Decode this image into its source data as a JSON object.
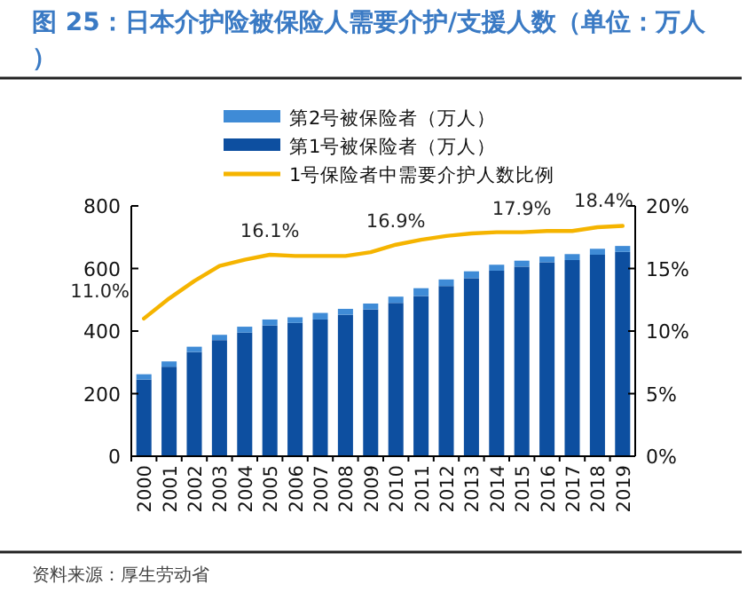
{
  "chart_data": {
    "type": "bar",
    "title": "图 25：日本介护险被保险人需要介护/支援人数（单位：万人）",
    "categories": [
      "2000",
      "2001",
      "2002",
      "2003",
      "2004",
      "2005",
      "2006",
      "2007",
      "2008",
      "2009",
      "2010",
      "2011",
      "2012",
      "2013",
      "2014",
      "2015",
      "2016",
      "2017",
      "2018",
      "2019"
    ],
    "stacked": true,
    "series": [
      {
        "name": "第1号被保险者（万人）",
        "color": "#0d4fa0",
        "values": [
          245,
          286,
          333,
          371,
          395,
          418,
          426,
          437,
          452,
          469,
          490,
          512,
          544,
          569,
          593,
          606,
          620,
          627,
          644,
          653
        ]
      },
      {
        "name": "第2号被保险者（万人）",
        "color": "#3f8bd6",
        "values": [
          17,
          17,
          17,
          17,
          19,
          19,
          18,
          21,
          19,
          19,
          20,
          25,
          21,
          22,
          19,
          19,
          18,
          19,
          19,
          19
        ]
      },
      {
        "name": "1号保险者中需要介护人数比例",
        "type": "line",
        "axis": "y2",
        "color": "#f5b400",
        "values": [
          11.0,
          12.6,
          14.0,
          15.2,
          15.7,
          16.1,
          16.0,
          16.0,
          16.0,
          16.3,
          16.9,
          17.3,
          17.6,
          17.8,
          17.9,
          17.9,
          18.0,
          18.0,
          18.3,
          18.4
        ],
        "value_labels": [
          "11.0%",
          null,
          null,
          null,
          null,
          "16.1%",
          null,
          null,
          null,
          null,
          "16.9%",
          null,
          null,
          null,
          null,
          "17.9%",
          null,
          null,
          null,
          "18.4%"
        ]
      }
    ],
    "ylim": [
      0,
      800
    ],
    "yticks": [
      0,
      200,
      400,
      600,
      800
    ],
    "y2lim": [
      0,
      20
    ],
    "y2ticks": [
      {
        "value": 0,
        "label": "0%"
      },
      {
        "value": 5,
        "label": "5%"
      },
      {
        "value": 10,
        "label": "10%"
      },
      {
        "value": 15,
        "label": "15%"
      },
      {
        "value": 20,
        "label": "20%"
      }
    ],
    "legend": "top",
    "grid": false,
    "annotations": [
      "资料来源：厚生劳动省"
    ]
  }
}
